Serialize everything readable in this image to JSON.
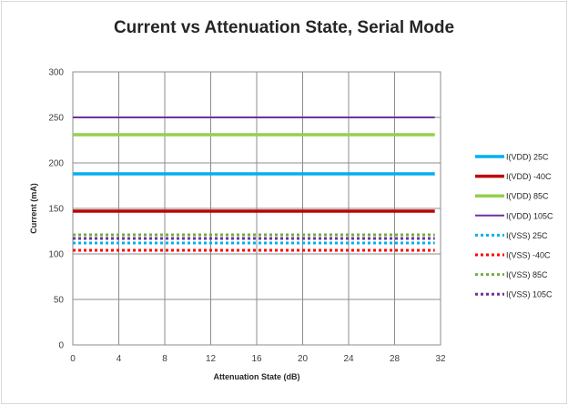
{
  "chart_data": {
    "type": "line",
    "title": "Current vs Attenuation State, Serial Mode",
    "xlabel": "Attenuation State (dB)",
    "ylabel": "Current (mA)",
    "xlim": [
      0,
      32
    ],
    "ylim": [
      0,
      300
    ],
    "xticks": [
      0,
      4,
      8,
      12,
      16,
      20,
      24,
      28,
      32
    ],
    "yticks": [
      0,
      50,
      100,
      150,
      200,
      250,
      300
    ],
    "grid": true,
    "legend_position": "right",
    "x_range": [
      0,
      31.5
    ],
    "series": [
      {
        "name": "I(VDD) 25C",
        "value": 188,
        "color": "#00b0f0",
        "style": "solid"
      },
      {
        "name": "I(VDD) -40C",
        "value": 147,
        "color": "#c00000",
        "style": "solid"
      },
      {
        "name": "I(VDD) 85C",
        "value": 231,
        "color": "#92d050",
        "style": "solid"
      },
      {
        "name": "I(VDD) 105C",
        "value": 250,
        "color": "#7030a0",
        "style": "solid-thin"
      },
      {
        "name": "I(VSS) 25C",
        "value": 112,
        "color": "#00b0f0",
        "style": "dotted"
      },
      {
        "name": "I(VSS) -40C",
        "value": 104,
        "color": "#ff0000",
        "style": "dotted"
      },
      {
        "name": "I(VSS) 85C",
        "value": 121,
        "color": "#70ad47",
        "style": "dotted"
      },
      {
        "name": "I(VSS) 105C",
        "value": 117,
        "color": "#7030a0",
        "style": "dotted"
      }
    ]
  }
}
